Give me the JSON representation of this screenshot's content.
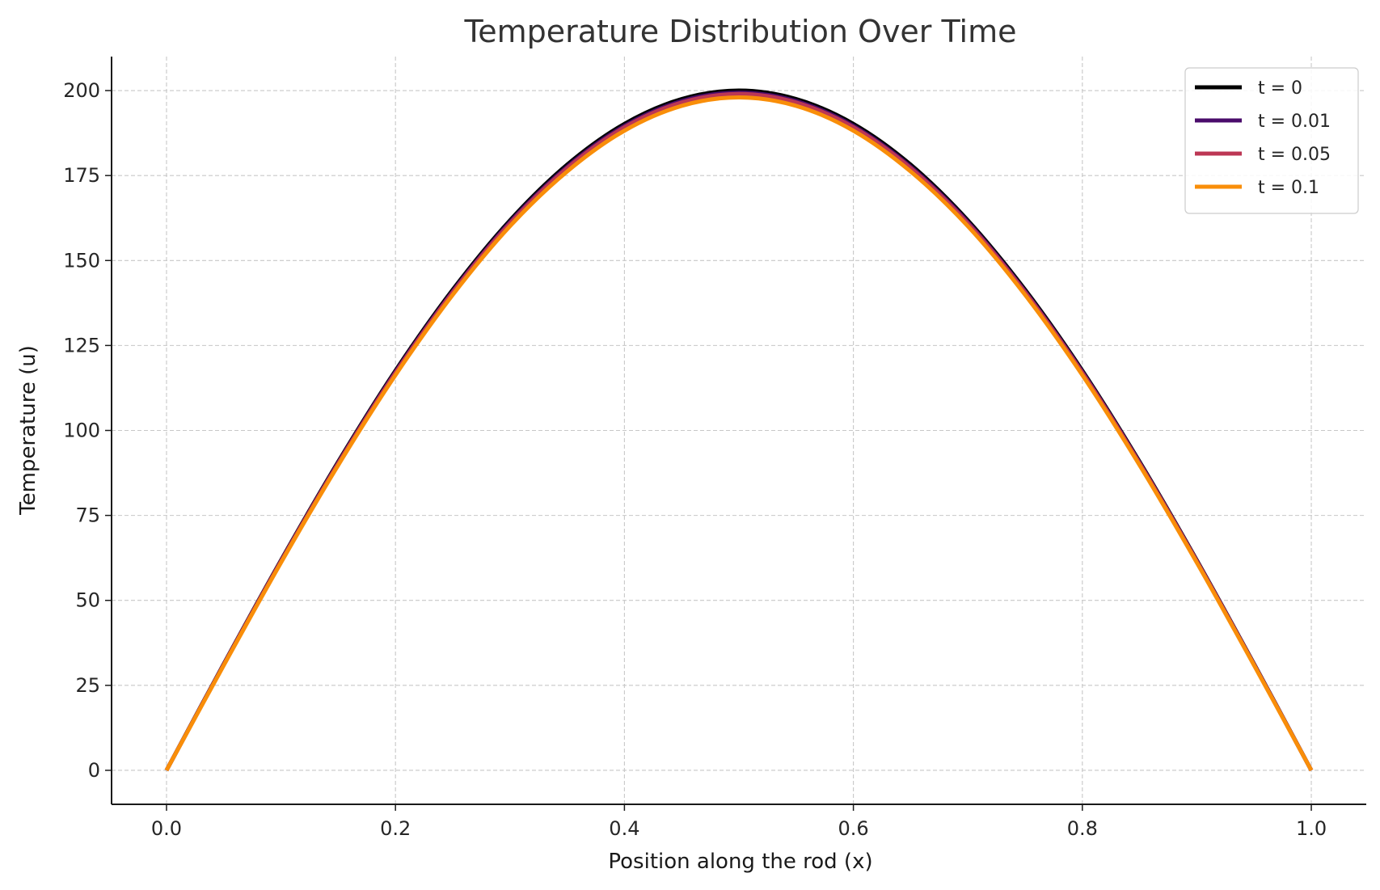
{
  "chart_data": {
    "type": "line",
    "title": "Temperature Distribution Over Time",
    "xlabel": "Position along the rod (x)",
    "ylabel": "Temperature (u)",
    "xlim": [
      -0.048,
      1.048
    ],
    "ylim": [
      -10,
      210
    ],
    "xticks": [
      0.0,
      0.2,
      0.4,
      0.6,
      0.8,
      1.0
    ],
    "xtick_labels": [
      "0.0",
      "0.2",
      "0.4",
      "0.6",
      "0.8",
      "1.0"
    ],
    "yticks": [
      0,
      25,
      50,
      75,
      100,
      125,
      150,
      175,
      200
    ],
    "ytick_labels": [
      "0",
      "25",
      "50",
      "75",
      "100",
      "125",
      "150",
      "175",
      "200"
    ],
    "grid": true,
    "legend_position": "top-right",
    "x": [
      0.0,
      0.05,
      0.1,
      0.15,
      0.2,
      0.25,
      0.3,
      0.35,
      0.4,
      0.45,
      0.5,
      0.55,
      0.6,
      0.65,
      0.7,
      0.75,
      0.8,
      0.85,
      0.9,
      0.95,
      1.0
    ],
    "series": [
      {
        "name": "t = 0",
        "color": "#000000",
        "values": [
          0,
          31.3,
          61.8,
          90.8,
          117.6,
          141.4,
          161.8,
          178.2,
          190.2,
          197.5,
          200.0,
          197.5,
          190.2,
          178.2,
          161.8,
          141.4,
          117.6,
          90.8,
          61.8,
          31.3,
          0
        ]
      },
      {
        "name": "t = 0.01",
        "color": "#4a0c6b",
        "values": [
          0,
          31.2,
          61.6,
          90.5,
          117.2,
          140.9,
          161.3,
          177.6,
          189.6,
          196.9,
          199.4,
          196.9,
          189.6,
          177.6,
          161.3,
          140.9,
          117.2,
          90.5,
          61.6,
          31.2,
          0
        ]
      },
      {
        "name": "t = 0.05",
        "color": "#bc3754",
        "values": [
          0,
          31.1,
          61.5,
          90.3,
          116.9,
          140.6,
          160.9,
          177.2,
          189.2,
          196.5,
          199.0,
          196.5,
          189.2,
          177.2,
          160.9,
          140.6,
          116.9,
          90.3,
          61.5,
          31.1,
          0
        ]
      },
      {
        "name": "t = 0.1",
        "color": "#f98e09",
        "values": [
          0,
          30.9,
          61.1,
          89.8,
          116.3,
          139.9,
          160.1,
          176.2,
          188.2,
          195.5,
          198.0,
          195.5,
          188.2,
          176.2,
          160.1,
          139.9,
          116.3,
          89.8,
          61.1,
          30.9,
          0
        ]
      }
    ]
  }
}
